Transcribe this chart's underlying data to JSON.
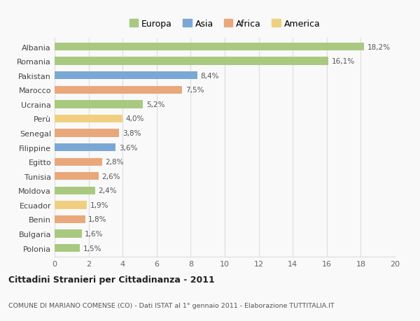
{
  "countries": [
    "Albania",
    "Romania",
    "Pakistan",
    "Marocco",
    "Ucraina",
    "Perù",
    "Senegal",
    "Filippine",
    "Egitto",
    "Tunisia",
    "Moldova",
    "Ecuador",
    "Benin",
    "Bulgaria",
    "Polonia"
  ],
  "values": [
    18.2,
    16.1,
    8.4,
    7.5,
    5.2,
    4.0,
    3.8,
    3.6,
    2.8,
    2.6,
    2.4,
    1.9,
    1.8,
    1.6,
    1.5
  ],
  "labels": [
    "18,2%",
    "16,1%",
    "8,4%",
    "7,5%",
    "5,2%",
    "4,0%",
    "3,8%",
    "3,6%",
    "2,8%",
    "2,6%",
    "2,4%",
    "1,9%",
    "1,8%",
    "1,6%",
    "1,5%"
  ],
  "continents": [
    "Europa",
    "Europa",
    "Asia",
    "Africa",
    "Europa",
    "America",
    "Africa",
    "Asia",
    "Africa",
    "Africa",
    "Europa",
    "America",
    "Africa",
    "Europa",
    "Europa"
  ],
  "colors": {
    "Europa": "#a8c97f",
    "Asia": "#7ba7d4",
    "Africa": "#e8a87c",
    "America": "#f0d080"
  },
  "legend_labels": [
    "Europa",
    "Asia",
    "Africa",
    "America"
  ],
  "legend_colors": [
    "#a8c97f",
    "#7ba7d4",
    "#e8a87c",
    "#f0d080"
  ],
  "title": "Cittadini Stranieri per Cittadinanza - 2011",
  "subtitle": "COMUNE DI MARIANO COMENSE (CO) - Dati ISTAT al 1° gennaio 2011 - Elaborazione TUTTITALIA.IT",
  "xlim": [
    0,
    20
  ],
  "xticks": [
    0,
    2,
    4,
    6,
    8,
    10,
    12,
    14,
    16,
    18,
    20
  ],
  "background_color": "#f9f9f9",
  "grid_color": "#dddddd",
  "bar_height": 0.55
}
